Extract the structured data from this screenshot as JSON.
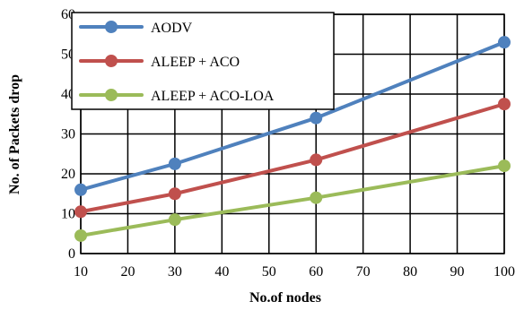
{
  "chart_data": {
    "type": "line",
    "xlabel": "No.of nodes",
    "ylabel": "No. of Packets drop",
    "x_ticks": [
      "10",
      "20",
      "30",
      "40",
      "50",
      "60",
      "70",
      "80",
      "90",
      "100"
    ],
    "y_ticks": [
      "0",
      "10",
      "20",
      "30",
      "40",
      "50",
      "60"
    ],
    "xlim": [
      10,
      100
    ],
    "ylim": [
      0,
      60
    ],
    "grid": true,
    "legend_position": "top-left",
    "x": [
      10,
      30,
      60,
      100
    ],
    "series": [
      {
        "name": "AODV",
        "color": "#4f81bd",
        "values": [
          16,
          22.5,
          34,
          53
        ]
      },
      {
        "name": "ALEEP + ACO",
        "color": "#c0504d",
        "values": [
          10.5,
          15,
          23.5,
          37.5
        ]
      },
      {
        "name": "ALEEP + ACO-LOA",
        "color": "#9bbb59",
        "values": [
          4.5,
          8.5,
          14,
          22
        ]
      }
    ]
  }
}
